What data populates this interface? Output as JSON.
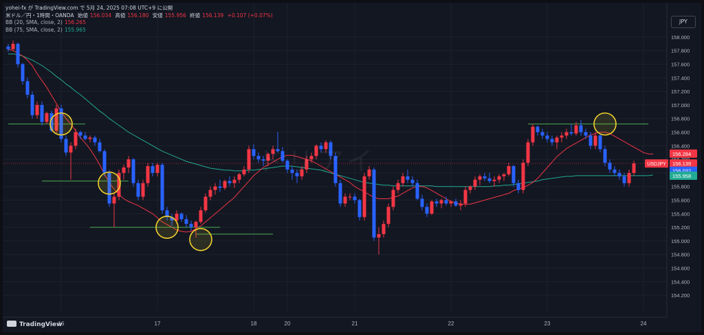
{
  "header": {
    "publisher": "yohei-fx が TradingView.com で 5月 24, 2025 07:08 UTC+9 に公開",
    "symbol": "米ドル／円・1時間・OANDA",
    "open_label": "始値",
    "open": "156.034",
    "high_label": "高値",
    "high": "156.180",
    "low_label": "安値",
    "low": "155.956",
    "close_label": "終値",
    "close": "156.139",
    "change": "+0.107 (+0.07%)",
    "bb20_label": "BB (20, SMA, close, 2)",
    "bb20_value": "156.265",
    "bb75_label": "BB (75, SMA, close, 2)",
    "bb75_value": "155.965"
  },
  "currency_button": "JPY",
  "watermark": "ドリアイ",
  "footer_brand": "TradingView",
  "colors": {
    "up": "#f23645",
    "down": "#2962ff",
    "bb20": "#f23645",
    "bb75": "#22ab94",
    "marker": "#f2d22e",
    "hline": "#4caf50"
  },
  "chart_data": {
    "type": "candlestick",
    "symbol": "USDJPY",
    "y_ticks": [
      "158.000",
      "157.800",
      "157.600",
      "157.400",
      "157.200",
      "157.000",
      "156.800",
      "156.600",
      "156.400",
      "156.200",
      "156.000",
      "155.800",
      "155.600",
      "155.400",
      "155.200",
      "155.000",
      "154.800",
      "154.600",
      "154.400",
      "154.200"
    ],
    "ylim": [
      154.1,
      158.1
    ],
    "x_ticks": [
      {
        "label": "16",
        "bar": 11
      },
      {
        "label": "17",
        "bar": 31
      },
      {
        "label": "18",
        "bar": 51
      },
      {
        "label": "20",
        "bar": 58
      },
      {
        "label": "21",
        "bar": 72
      },
      {
        "label": "22",
        "bar": 92
      },
      {
        "label": "23",
        "bar": 112
      },
      {
        "label": "24",
        "bar": 132
      }
    ],
    "price_tags": [
      {
        "label": "",
        "value": "156.284",
        "color": "#f23645"
      },
      {
        "label": "USDJPY",
        "value": "156.139",
        "color": "#f23645"
      },
      {
        "label": "",
        "value": "156.032",
        "color": "#2962ff"
      },
      {
        "label": "",
        "value": "155.958",
        "color": "#22ab94"
      }
    ],
    "support_resistance": [
      {
        "from": 0,
        "to": 16,
        "price": 156.72
      },
      {
        "from": 7,
        "to": 25,
        "price": 155.88
      },
      {
        "from": 17,
        "to": 44,
        "price": 155.2
      },
      {
        "from": 39,
        "to": 55,
        "price": 155.1
      },
      {
        "from": 108,
        "to": 133,
        "price": 156.72
      }
    ],
    "circles": [
      {
        "bar": 11,
        "price": 156.72
      },
      {
        "bar": 21,
        "price": 155.85
      },
      {
        "bar": 33,
        "price": 155.2
      },
      {
        "bar": 40,
        "price": 155.02
      },
      {
        "bar": 124,
        "price": 156.72
      }
    ],
    "bb20": [
      157.82,
      157.8,
      157.76,
      157.72,
      157.66,
      157.58,
      157.46,
      157.36,
      157.26,
      157.14,
      157.02,
      156.9,
      156.8,
      156.72,
      156.62,
      156.52,
      156.44,
      156.35,
      156.24,
      156.12,
      155.98,
      155.86,
      155.76,
      155.68,
      155.62,
      155.58,
      155.55,
      155.52,
      155.48,
      155.44,
      155.4,
      155.34,
      155.28,
      155.24,
      155.2,
      155.16,
      155.14,
      155.13,
      155.14,
      155.18,
      155.22,
      155.28,
      155.34,
      155.4,
      155.46,
      155.52,
      155.58,
      155.64,
      155.72,
      155.8,
      155.88,
      155.96,
      156.02,
      156.08,
      156.12,
      156.16,
      156.2,
      156.24,
      156.26,
      156.26,
      156.24,
      156.22,
      156.2,
      156.18,
      156.14,
      156.1,
      156.06,
      156.02,
      155.98,
      155.94,
      155.9,
      155.86,
      155.8,
      155.76,
      155.72,
      155.68,
      155.64,
      155.62,
      155.62,
      155.62,
      155.64,
      155.66,
      155.7,
      155.74,
      155.78,
      155.8,
      155.8,
      155.78,
      155.74,
      155.7,
      155.66,
      155.62,
      155.58,
      155.56,
      155.54,
      155.54,
      155.54,
      155.56,
      155.58,
      155.6,
      155.62,
      155.64,
      155.66,
      155.68,
      155.7,
      155.74,
      155.76,
      155.78,
      155.82,
      155.86,
      155.92,
      156.0,
      156.08,
      156.16,
      156.24,
      156.3,
      156.36,
      156.4,
      156.44,
      156.48,
      156.52,
      156.56,
      156.58,
      156.6,
      156.6,
      156.58,
      156.54,
      156.5,
      156.46,
      156.42,
      156.38,
      156.34,
      156.3,
      156.28,
      156.28
    ],
    "bb75": [
      157.75,
      157.75,
      157.74,
      157.72,
      157.69,
      157.66,
      157.62,
      157.58,
      157.53,
      157.48,
      157.42,
      157.37,
      157.31,
      157.26,
      157.2,
      157.15,
      157.09,
      157.03,
      156.97,
      156.91,
      156.86,
      156.8,
      156.75,
      156.7,
      156.65,
      156.6,
      156.56,
      156.52,
      156.48,
      156.44,
      156.4,
      156.36,
      156.32,
      156.29,
      156.26,
      156.23,
      156.2,
      156.17,
      156.15,
      156.13,
      156.11,
      156.09,
      156.07,
      156.06,
      156.05,
      156.04,
      156.04,
      156.03,
      156.03,
      156.03,
      156.04,
      156.04,
      156.05,
      156.06,
      156.07,
      156.08,
      156.09,
      156.1,
      156.1,
      156.1,
      156.09,
      156.08,
      156.07,
      156.06,
      156.05,
      156.04,
      156.02,
      156.0,
      155.98,
      155.96,
      155.94,
      155.92,
      155.9,
      155.88,
      155.86,
      155.85,
      155.84,
      155.83,
      155.82,
      155.82,
      155.81,
      155.81,
      155.81,
      155.81,
      155.81,
      155.81,
      155.81,
      155.81,
      155.81,
      155.8,
      155.8,
      155.8,
      155.8,
      155.8,
      155.8,
      155.8,
      155.8,
      155.8,
      155.8,
      155.8,
      155.8,
      155.81,
      155.81,
      155.82,
      155.82,
      155.83,
      155.84,
      155.85,
      155.86,
      155.87,
      155.88,
      155.9,
      155.91,
      155.92,
      155.93,
      155.94,
      155.95,
      155.95,
      155.96,
      155.96,
      155.96,
      155.96,
      155.96,
      155.96,
      155.96,
      155.96,
      155.96,
      155.96,
      155.96,
      155.96,
      155.96,
      155.96,
      155.96,
      155.96,
      155.97
    ],
    "ohlc": [
      [
        157.86,
        157.9,
        157.78,
        157.82
      ],
      [
        157.82,
        157.95,
        157.8,
        157.9
      ],
      [
        157.9,
        157.92,
        157.55,
        157.6
      ],
      [
        157.6,
        157.62,
        157.3,
        157.35
      ],
      [
        157.35,
        157.4,
        157.1,
        157.15
      ],
      [
        157.15,
        157.2,
        156.8,
        156.85
      ],
      [
        156.85,
        157.05,
        156.8,
        157.0
      ],
      [
        157.0,
        157.05,
        156.7,
        156.75
      ],
      [
        156.75,
        156.9,
        156.72,
        156.88
      ],
      [
        156.88,
        156.92,
        156.6,
        156.62
      ],
      [
        156.62,
        157.0,
        156.58,
        156.95
      ],
      [
        156.95,
        157.0,
        156.45,
        156.5
      ],
      [
        156.5,
        156.55,
        156.25,
        156.3
      ],
      [
        156.3,
        156.45,
        155.9,
        156.4
      ],
      [
        156.4,
        156.65,
        156.35,
        156.6
      ],
      [
        156.6,
        156.62,
        156.5,
        156.55
      ],
      [
        156.55,
        156.6,
        156.48,
        156.5
      ],
      [
        156.5,
        156.55,
        156.45,
        156.52
      ],
      [
        156.52,
        156.55,
        156.4,
        156.45
      ],
      [
        156.45,
        156.5,
        156.3,
        156.32
      ],
      [
        156.32,
        156.35,
        155.95,
        156.0
      ],
      [
        156.0,
        156.05,
        155.5,
        155.55
      ],
      [
        155.55,
        155.7,
        155.2,
        155.65
      ],
      [
        155.65,
        156.05,
        155.6,
        156.0
      ],
      [
        156.0,
        156.12,
        155.9,
        156.08
      ],
      [
        156.08,
        156.25,
        156.0,
        156.2
      ],
      [
        156.2,
        156.22,
        155.8,
        155.85
      ],
      [
        155.85,
        155.9,
        155.6,
        155.65
      ],
      [
        155.65,
        155.9,
        155.6,
        155.85
      ],
      [
        155.85,
        156.15,
        155.8,
        156.1
      ],
      [
        156.1,
        156.15,
        155.95,
        156.0
      ],
      [
        156.0,
        156.15,
        155.95,
        156.12
      ],
      [
        156.12,
        156.15,
        155.4,
        155.45
      ],
      [
        155.45,
        155.5,
        155.3,
        155.35
      ],
      [
        155.35,
        155.4,
        155.22,
        155.3
      ],
      [
        155.3,
        155.45,
        155.25,
        155.4
      ],
      [
        155.4,
        155.42,
        155.28,
        155.32
      ],
      [
        155.32,
        155.38,
        155.2,
        155.25
      ],
      [
        155.25,
        155.3,
        155.15,
        155.2
      ],
      [
        155.2,
        155.3,
        155.05,
        155.28
      ],
      [
        155.28,
        155.5,
        155.25,
        155.45
      ],
      [
        155.45,
        155.7,
        155.42,
        155.65
      ],
      [
        155.65,
        155.8,
        155.6,
        155.75
      ],
      [
        155.75,
        155.85,
        155.68,
        155.8
      ],
      [
        155.8,
        155.9,
        155.72,
        155.78
      ],
      [
        155.78,
        155.9,
        155.75,
        155.88
      ],
      [
        155.88,
        155.95,
        155.8,
        155.85
      ],
      [
        155.85,
        155.95,
        155.78,
        155.9
      ],
      [
        155.9,
        156.0,
        155.85,
        155.98
      ],
      [
        155.98,
        156.1,
        155.95,
        156.05
      ],
      [
        156.05,
        156.4,
        156.0,
        156.35
      ],
      [
        156.35,
        156.42,
        156.2,
        156.25
      ],
      [
        156.25,
        156.3,
        156.15,
        156.2
      ],
      [
        156.2,
        156.25,
        156.1,
        156.18
      ],
      [
        156.18,
        156.3,
        156.1,
        156.28
      ],
      [
        156.28,
        156.4,
        156.2,
        156.35
      ],
      [
        156.35,
        156.6,
        156.3,
        156.32
      ],
      [
        156.32,
        156.38,
        156.15,
        156.18
      ],
      [
        156.18,
        156.2,
        156.0,
        156.05
      ],
      [
        156.05,
        156.1,
        155.9,
        156.0
      ],
      [
        156.0,
        156.05,
        155.85,
        155.95
      ],
      [
        155.95,
        156.1,
        155.9,
        156.05
      ],
      [
        156.05,
        156.25,
        156.0,
        156.2
      ],
      [
        156.2,
        156.3,
        156.15,
        156.25
      ],
      [
        156.25,
        156.42,
        156.2,
        156.4
      ],
      [
        156.4,
        156.45,
        156.3,
        156.35
      ],
      [
        156.35,
        156.48,
        156.3,
        156.45
      ],
      [
        156.45,
        156.48,
        156.2,
        156.25
      ],
      [
        156.25,
        156.3,
        155.8,
        155.85
      ],
      [
        155.85,
        155.9,
        155.5,
        155.55
      ],
      [
        155.55,
        155.7,
        155.5,
        155.65
      ],
      [
        155.65,
        155.7,
        155.6,
        155.65
      ],
      [
        155.65,
        155.7,
        155.55,
        155.6
      ],
      [
        155.6,
        155.62,
        155.3,
        155.35
      ],
      [
        155.35,
        156.0,
        155.3,
        155.95
      ],
      [
        155.95,
        156.1,
        155.9,
        156.05
      ],
      [
        156.05,
        156.08,
        155.0,
        155.05
      ],
      [
        155.05,
        155.2,
        154.8,
        155.1
      ],
      [
        155.1,
        155.3,
        155.05,
        155.25
      ],
      [
        155.25,
        155.55,
        155.2,
        155.5
      ],
      [
        155.5,
        155.8,
        155.45,
        155.75
      ],
      [
        155.75,
        155.9,
        155.7,
        155.85
      ],
      [
        155.85,
        156.0,
        155.8,
        155.95
      ],
      [
        155.95,
        156.05,
        155.85,
        155.9
      ],
      [
        155.9,
        155.95,
        155.8,
        155.85
      ],
      [
        155.85,
        155.9,
        155.6,
        155.62
      ],
      [
        155.62,
        155.68,
        155.45,
        155.5
      ],
      [
        155.5,
        155.55,
        155.35,
        155.4
      ],
      [
        155.4,
        155.6,
        155.38,
        155.58
      ],
      [
        155.58,
        155.62,
        155.5,
        155.55
      ],
      [
        155.55,
        155.62,
        155.48,
        155.6
      ],
      [
        155.6,
        155.65,
        155.52,
        155.55
      ],
      [
        155.55,
        155.6,
        155.5,
        155.58
      ],
      [
        155.58,
        155.62,
        155.5,
        155.52
      ],
      [
        155.52,
        155.6,
        155.45,
        155.55
      ],
      [
        155.55,
        155.8,
        155.5,
        155.75
      ],
      [
        155.75,
        155.82,
        155.7,
        155.8
      ],
      [
        155.8,
        155.95,
        155.75,
        155.9
      ],
      [
        155.9,
        155.98,
        155.82,
        155.95
      ],
      [
        155.95,
        156.0,
        155.88,
        155.92
      ],
      [
        155.92,
        156.0,
        155.85,
        155.88
      ],
      [
        155.88,
        155.95,
        155.8,
        155.9
      ],
      [
        155.9,
        155.98,
        155.85,
        155.95
      ],
      [
        155.95,
        156.0,
        155.88,
        155.98
      ],
      [
        155.98,
        156.15,
        155.95,
        156.1
      ],
      [
        156.1,
        156.12,
        155.8,
        155.85
      ],
      [
        155.85,
        155.9,
        155.7,
        155.75
      ],
      [
        155.75,
        156.2,
        155.7,
        156.15
      ],
      [
        156.15,
        156.5,
        156.1,
        156.45
      ],
      [
        156.45,
        156.72,
        156.4,
        156.68
      ],
      [
        156.68,
        156.7,
        156.55,
        156.6
      ],
      [
        156.6,
        156.65,
        156.5,
        156.55
      ],
      [
        156.55,
        156.6,
        156.45,
        156.5
      ],
      [
        156.5,
        156.55,
        156.4,
        156.45
      ],
      [
        156.45,
        156.55,
        156.35,
        156.52
      ],
      [
        156.52,
        156.6,
        156.45,
        156.55
      ],
      [
        156.55,
        156.65,
        156.5,
        156.6
      ],
      [
        156.6,
        156.72,
        156.55,
        156.58
      ],
      [
        156.58,
        156.75,
        156.55,
        156.7
      ],
      [
        156.7,
        156.78,
        156.55,
        156.6
      ],
      [
        156.6,
        156.65,
        156.5,
        156.55
      ],
      [
        156.55,
        156.6,
        156.35,
        156.4
      ],
      [
        156.4,
        156.6,
        156.35,
        156.55
      ],
      [
        156.55,
        156.58,
        156.3,
        156.35
      ],
      [
        156.35,
        156.4,
        156.1,
        156.15
      ],
      [
        156.15,
        156.2,
        156.0,
        156.05
      ],
      [
        156.05,
        156.1,
        155.95,
        156.0
      ],
      [
        156.0,
        156.05,
        155.9,
        155.95
      ],
      [
        155.95,
        156.0,
        155.8,
        155.85
      ],
      [
        155.85,
        156.05,
        155.8,
        156.0
      ],
      [
        156.0,
        156.18,
        155.96,
        156.14
      ]
    ]
  }
}
